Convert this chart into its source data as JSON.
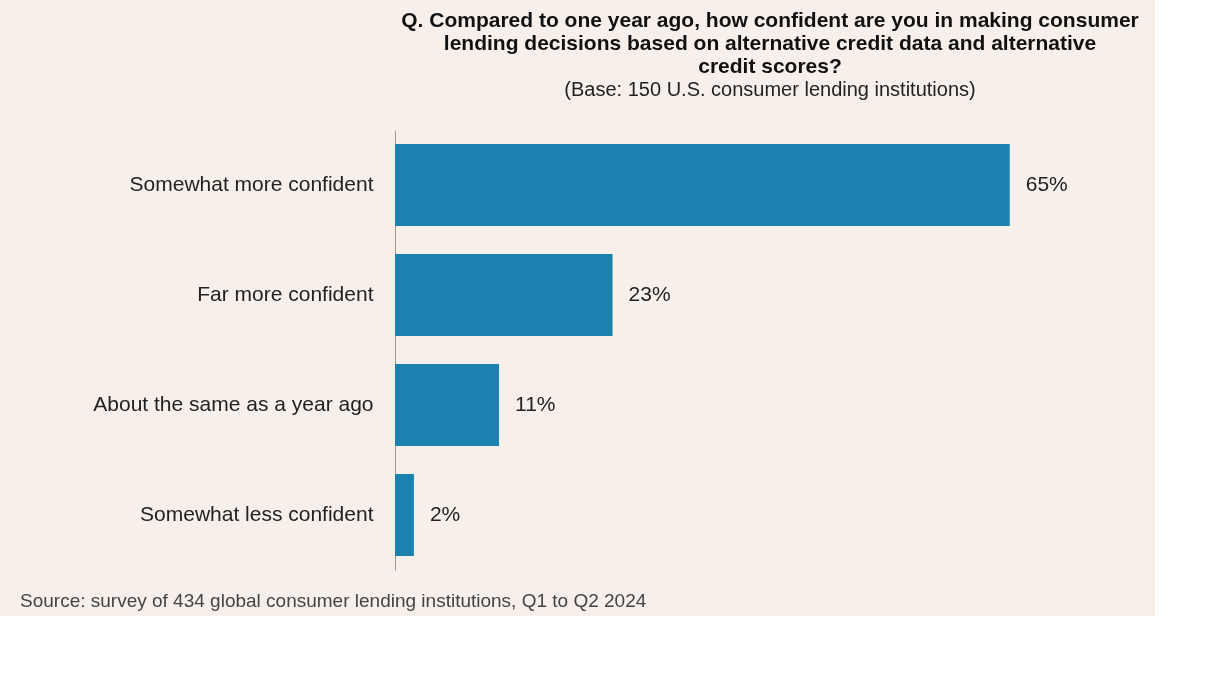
{
  "chart_data": {
    "type": "bar",
    "orientation": "horizontal",
    "title": "Q. Compared to one year ago, how confident are you in making consumer lending decisions based on alternative credit data and alternative credit scores?",
    "subtitle": "(Base: 150 U.S. consumer lending institutions)",
    "categories": [
      "Somewhat more confident",
      "Far more confident",
      "About the same as a year ago",
      "Somewhat less confident"
    ],
    "values": [
      65,
      23,
      11,
      2
    ],
    "value_labels": [
      "65%",
      "23%",
      "11%",
      "2%"
    ],
    "color": "#1b82b0",
    "grid": false,
    "annotations": [
      "Source: survey of 434 global consumer lending institutions, Q1 to Q2 2024"
    ]
  }
}
